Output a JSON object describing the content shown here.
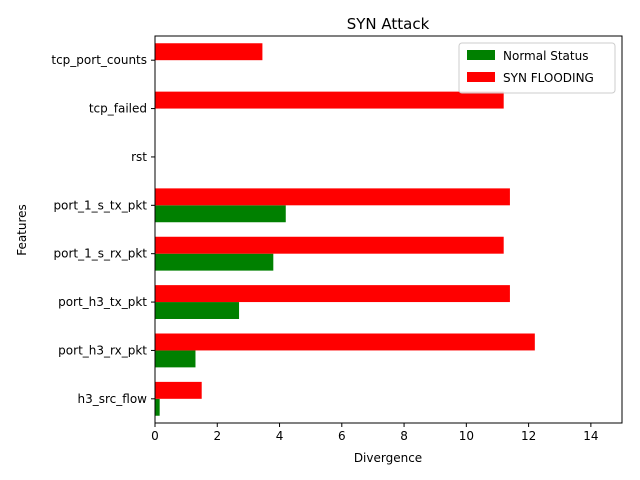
{
  "chart_data": {
    "type": "bar",
    "orientation": "horizontal",
    "title": "SYN Attack",
    "xlabel": "Divergence",
    "ylabel": "Features",
    "xlim": [
      0,
      15
    ],
    "xticks": [
      0,
      2,
      4,
      6,
      8,
      10,
      12,
      14
    ],
    "grid": false,
    "legend_position": "top-right",
    "categories": [
      "h3_src_flow",
      "port_h3_rx_pkt",
      "port_h3_tx_pkt",
      "port_1_s_rx_pkt",
      "port_1_s_tx_pkt",
      "rst",
      "tcp_failed",
      "tcp_port_counts"
    ],
    "series": [
      {
        "name": "Normal Status",
        "color": "#008000",
        "values": [
          0.15,
          1.3,
          2.7,
          3.8,
          4.2,
          0,
          0,
          0
        ]
      },
      {
        "name": "SYN FLOODING",
        "color": "#ff0000",
        "values": [
          1.5,
          12.2,
          11.4,
          11.2,
          11.4,
          0,
          11.2,
          3.45
        ]
      }
    ]
  }
}
